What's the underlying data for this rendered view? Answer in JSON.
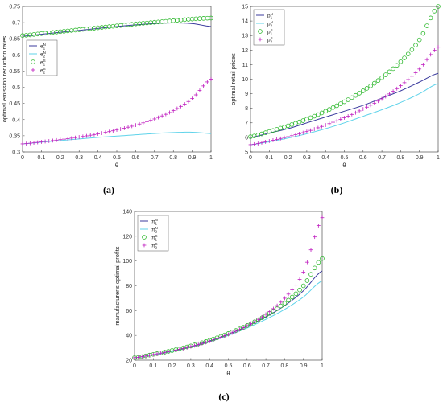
{
  "chart_data": [
    {
      "type": "line",
      "panel_label": "(a)",
      "xlabel": "θ",
      "ylabel": "optimal emission reduction rates",
      "xlim": [
        0,
        1
      ],
      "ylim": [
        0.3,
        0.75
      ],
      "xticks": [
        "0",
        "0.1",
        "0.2",
        "0.3",
        "0.4",
        "0.5",
        "0.6",
        "0.7",
        "0.8",
        "0.9",
        "1"
      ],
      "yticks": [
        "0.3",
        "0.35",
        "0.4",
        "0.45",
        "0.5",
        "0.55",
        "0.6",
        "0.65",
        "0.7",
        "0.75"
      ],
      "legend_position": "left",
      "x": [
        0,
        0.1,
        0.2,
        0.3,
        0.4,
        0.5,
        0.6,
        0.7,
        0.8,
        0.9,
        1.0
      ],
      "series": [
        {
          "name": "e1N",
          "label_base": "e",
          "sub": "1",
          "sup": "N",
          "style": "line",
          "color": "#3b3b9e",
          "values": [
            0.658,
            0.664,
            0.67,
            0.676,
            0.682,
            0.688,
            0.693,
            0.697,
            0.699,
            0.697,
            0.688
          ]
        },
        {
          "name": "e2N",
          "label_base": "e",
          "sub": "2",
          "sup": "N",
          "style": "line",
          "color": "#5fd3ea",
          "values": [
            0.325,
            0.33,
            0.335,
            0.34,
            0.345,
            0.349,
            0.353,
            0.357,
            0.36,
            0.361,
            0.357
          ]
        },
        {
          "name": "e1S",
          "label_base": "e",
          "sub": "1",
          "sup": "S",
          "style": "circle",
          "color": "#2db82d",
          "values": [
            0.66,
            0.666,
            0.672,
            0.678,
            0.684,
            0.69,
            0.696,
            0.701,
            0.706,
            0.711,
            0.714
          ]
        },
        {
          "name": "e2S",
          "label_base": "e",
          "sub": "2",
          "sup": "S",
          "style": "plus",
          "color": "#c020c0",
          "values": [
            0.325,
            0.331,
            0.338,
            0.346,
            0.356,
            0.368,
            0.383,
            0.402,
            0.428,
            0.465,
            0.525
          ]
        }
      ]
    },
    {
      "type": "line",
      "panel_label": "(b)",
      "xlabel": "θ",
      "ylabel": "optimal retail prices",
      "xlim": [
        0,
        1
      ],
      "ylim": [
        5,
        15
      ],
      "xticks": [
        "0",
        "0.1",
        "0.2",
        "0.3",
        "0.4",
        "0.5",
        "0.6",
        "0.7",
        "0.8",
        "0.9",
        "1"
      ],
      "yticks": [
        "5",
        "6",
        "7",
        "8",
        "9",
        "10",
        "11",
        "12",
        "13",
        "14",
        "15"
      ],
      "legend_position": "top-left",
      "x": [
        0,
        0.1,
        0.2,
        0.3,
        0.4,
        0.5,
        0.6,
        0.7,
        0.8,
        0.9,
        1.0
      ],
      "series": [
        {
          "name": "p1N",
          "label_base": "p",
          "sub": "1",
          "sup": "N",
          "style": "line",
          "color": "#3b3b9e",
          "values": [
            6.0,
            6.3,
            6.6,
            7.0,
            7.4,
            7.8,
            8.2,
            8.7,
            9.2,
            9.8,
            10.4
          ]
        },
        {
          "name": "p2N",
          "label_base": "p",
          "sub": "2",
          "sup": "N",
          "style": "line",
          "color": "#5fd3ea",
          "values": [
            5.5,
            5.7,
            5.95,
            6.25,
            6.6,
            7.0,
            7.45,
            7.9,
            8.4,
            9.0,
            9.7
          ]
        },
        {
          "name": "p1S",
          "label_base": "p",
          "sub": "1",
          "sup": "S",
          "style": "circle",
          "color": "#2db82d",
          "values": [
            6.05,
            6.4,
            6.8,
            7.25,
            7.8,
            8.45,
            9.2,
            10.1,
            11.2,
            12.7,
            15.0
          ]
        },
        {
          "name": "p2S",
          "label_base": "p",
          "sub": "2",
          "sup": "S",
          "style": "plus",
          "color": "#c020c0",
          "values": [
            5.5,
            5.75,
            6.05,
            6.4,
            6.85,
            7.35,
            7.95,
            8.65,
            9.55,
            10.7,
            12.2
          ]
        }
      ]
    },
    {
      "type": "line",
      "panel_label": "(c)",
      "xlabel": "θ",
      "ylabel": "manufacturer's optimal profits",
      "xlim": [
        0,
        1
      ],
      "ylim": [
        20,
        140
      ],
      "xticks": [
        "0",
        "0.1",
        "0.2",
        "0.3",
        "0.4",
        "0.5",
        "0.6",
        "0.7",
        "0.8",
        "0.9",
        "1"
      ],
      "yticks": [
        "20",
        "40",
        "60",
        "80",
        "100",
        "120",
        "140"
      ],
      "legend_position": "top-left",
      "x": [
        0,
        0.1,
        0.2,
        0.3,
        0.4,
        0.5,
        0.6,
        0.7,
        0.8,
        0.9,
        1.0
      ],
      "series": [
        {
          "name": "π1N",
          "label_base": "π",
          "sub": "1",
          "sup": "N",
          "style": "line",
          "color": "#3b3b9e",
          "values": [
            22,
            24.5,
            27.5,
            31,
            35.5,
            41,
            47.5,
            55,
            64,
            76,
            92
          ]
        },
        {
          "name": "π2N",
          "label_base": "π",
          "sub": "2",
          "sup": "N",
          "style": "line",
          "color": "#5fd3ea",
          "values": [
            22,
            24.3,
            27,
            30.5,
            34.8,
            40,
            46,
            53,
            61,
            71,
            84
          ]
        },
        {
          "name": "π1S",
          "label_base": "π",
          "sub": "1",
          "sup": "S",
          "style": "circle",
          "color": "#2db82d",
          "values": [
            22,
            24.7,
            27.8,
            31.5,
            36,
            41.5,
            48,
            56,
            66,
            80,
            102
          ]
        },
        {
          "name": "π2S",
          "label_base": "π",
          "sub": "2",
          "sup": "S",
          "style": "plus",
          "color": "#c020c0",
          "values": [
            22,
            24.5,
            27.5,
            31,
            35.3,
            40.8,
            47.8,
            57,
            70,
            91,
            135
          ]
        }
      ]
    }
  ]
}
